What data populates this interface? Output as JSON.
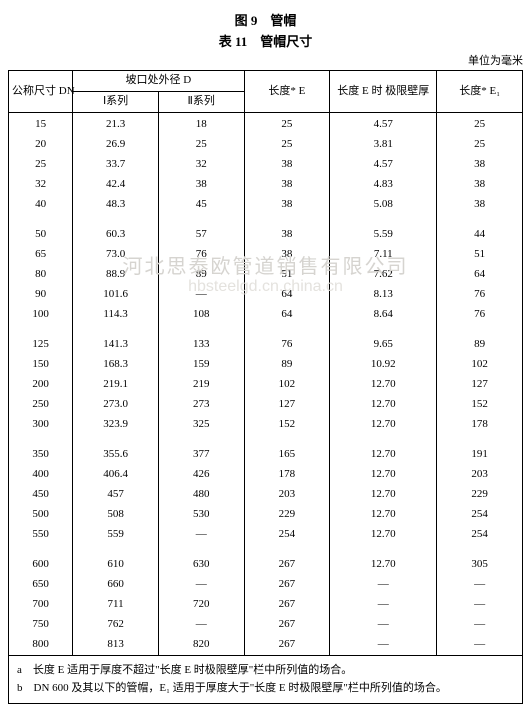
{
  "titles": {
    "figure": "图 9　管帽",
    "table": "表 11　管帽尺寸",
    "unit": "单位为毫米"
  },
  "headers": {
    "dn": "公称尺寸\nDN",
    "d_group": "坡口处外径\nD",
    "d1": "Ⅰ系列",
    "d2": "Ⅱ系列",
    "e": "长度*\nE",
    "t": "长度 E 时\n极限壁厚",
    "e1": "长度*\nE₁"
  },
  "groups": [
    [
      {
        "dn": "15",
        "d1": "21.3",
        "d2": "18",
        "e": "25",
        "t": "4.57",
        "e1": "25"
      },
      {
        "dn": "20",
        "d1": "26.9",
        "d2": "25",
        "e": "25",
        "t": "3.81",
        "e1": "25"
      },
      {
        "dn": "25",
        "d1": "33.7",
        "d2": "32",
        "e": "38",
        "t": "4.57",
        "e1": "38"
      },
      {
        "dn": "32",
        "d1": "42.4",
        "d2": "38",
        "e": "38",
        "t": "4.83",
        "e1": "38"
      },
      {
        "dn": "40",
        "d1": "48.3",
        "d2": "45",
        "e": "38",
        "t": "5.08",
        "e1": "38"
      }
    ],
    [
      {
        "dn": "50",
        "d1": "60.3",
        "d2": "57",
        "e": "38",
        "t": "5.59",
        "e1": "44"
      },
      {
        "dn": "65",
        "d1": "73.0",
        "d2": "76",
        "e": "38",
        "t": "7.11",
        "e1": "51"
      },
      {
        "dn": "80",
        "d1": "88.9",
        "d2": "89",
        "e": "51",
        "t": "7.62",
        "e1": "64"
      },
      {
        "dn": "90",
        "d1": "101.6",
        "d2": "—",
        "e": "64",
        "t": "8.13",
        "e1": "76"
      },
      {
        "dn": "100",
        "d1": "114.3",
        "d2": "108",
        "e": "64",
        "t": "8.64",
        "e1": "76"
      }
    ],
    [
      {
        "dn": "125",
        "d1": "141.3",
        "d2": "133",
        "e": "76",
        "t": "9.65",
        "e1": "89"
      },
      {
        "dn": "150",
        "d1": "168.3",
        "d2": "159",
        "e": "89",
        "t": "10.92",
        "e1": "102"
      },
      {
        "dn": "200",
        "d1": "219.1",
        "d2": "219",
        "e": "102",
        "t": "12.70",
        "e1": "127"
      },
      {
        "dn": "250",
        "d1": "273.0",
        "d2": "273",
        "e": "127",
        "t": "12.70",
        "e1": "152"
      },
      {
        "dn": "300",
        "d1": "323.9",
        "d2": "325",
        "e": "152",
        "t": "12.70",
        "e1": "178"
      }
    ],
    [
      {
        "dn": "350",
        "d1": "355.6",
        "d2": "377",
        "e": "165",
        "t": "12.70",
        "e1": "191"
      },
      {
        "dn": "400",
        "d1": "406.4",
        "d2": "426",
        "e": "178",
        "t": "12.70",
        "e1": "203"
      },
      {
        "dn": "450",
        "d1": "457",
        "d2": "480",
        "e": "203",
        "t": "12.70",
        "e1": "229"
      },
      {
        "dn": "500",
        "d1": "508",
        "d2": "530",
        "e": "229",
        "t": "12.70",
        "e1": "254"
      },
      {
        "dn": "550",
        "d1": "559",
        "d2": "—",
        "e": "254",
        "t": "12.70",
        "e1": "254"
      }
    ],
    [
      {
        "dn": "600",
        "d1": "610",
        "d2": "630",
        "e": "267",
        "t": "12.70",
        "e1": "305"
      },
      {
        "dn": "650",
        "d1": "660",
        "d2": "—",
        "e": "267",
        "t": "—",
        "e1": "—"
      },
      {
        "dn": "700",
        "d1": "711",
        "d2": "720",
        "e": "267",
        "t": "—",
        "e1": "—"
      },
      {
        "dn": "750",
        "d1": "762",
        "d2": "—",
        "e": "267",
        "t": "—",
        "e1": "—"
      },
      {
        "dn": "800",
        "d1": "813",
        "d2": "820",
        "e": "267",
        "t": "—",
        "e1": "—"
      }
    ]
  ],
  "footnotes": {
    "a": "a　长度 E 适用于厚度不超过\"长度 E 时极限壁厚\"栏中所列值的场合。",
    "b": "b　DN 600 及其以下的管帽，E₁ 适用于厚度大于\"长度 E 时极限壁厚\"栏中所列值的场合。"
  },
  "watermark": {
    "line1": "河北思泰欧管道销售有限公司",
    "line2": "hbsteelgd.cn.china.cn"
  },
  "style": {
    "background_color": "#ffffff",
    "border_color": "#000000",
    "text_color": "#000000",
    "watermark_color": "#d6d4d0",
    "font_family": "serif",
    "body_fontsize": 11,
    "title_fontsize": 13
  }
}
